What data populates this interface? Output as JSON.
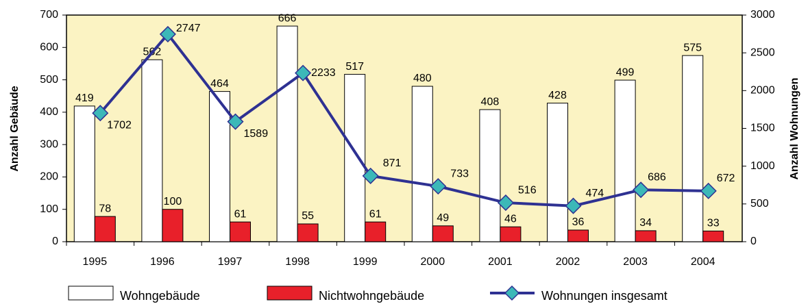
{
  "chart_data": {
    "type": "bar",
    "categories": [
      "1995",
      "1996",
      "1997",
      "1998",
      "1999",
      "2000",
      "2001",
      "2002",
      "2003",
      "2004"
    ],
    "series": [
      {
        "name": "Wohngebäude",
        "type": "bar",
        "color": "#ffffff",
        "values": [
          419,
          562,
          464,
          666,
          517,
          480,
          408,
          428,
          499,
          575
        ]
      },
      {
        "name": "Nichtwohngebäude",
        "type": "bar",
        "color": "#e8202a",
        "values": [
          78,
          100,
          61,
          55,
          61,
          49,
          46,
          36,
          34,
          33
        ]
      },
      {
        "name": "Wohnungen insgesamt",
        "type": "line",
        "axis": "y2",
        "color": "#2e3192",
        "marker_color": "#3cb8b8",
        "values": [
          1702,
          2747,
          1589,
          2233,
          871,
          733,
          516,
          474,
          686,
          672
        ]
      }
    ],
    "ylabel": "Anzahl Gebäude",
    "y2label": "Anzahl Wohnungen",
    "ylim": [
      0,
      700
    ],
    "yticks": [
      0,
      100,
      200,
      300,
      400,
      500,
      600,
      700
    ],
    "y2lim": [
      0,
      3000
    ],
    "y2ticks": [
      0,
      500,
      1000,
      1500,
      2000,
      2500,
      3000
    ],
    "plot_background": "#fbf3c3"
  }
}
